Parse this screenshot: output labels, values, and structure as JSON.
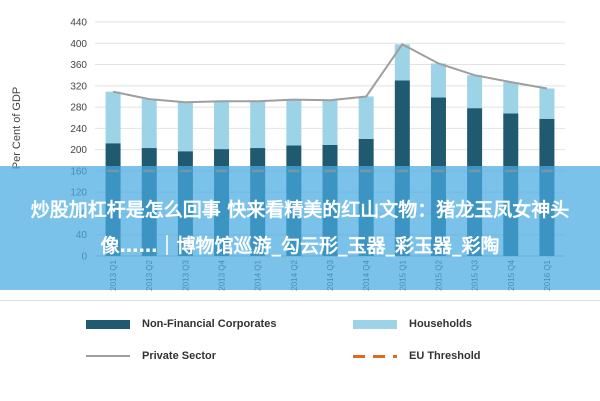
{
  "chart_data": {
    "type": "bar",
    "ylabel": "Per Cent of GDP",
    "ylim": [
      0,
      440
    ],
    "yticks": [
      0,
      40,
      80,
      120,
      160,
      200,
      240,
      280,
      320,
      360,
      400,
      440
    ],
    "categories": [
      "2013 Q1",
      "2013 Q2",
      "2013 Q3",
      "2013 Q4",
      "2014 Q1",
      "2014 Q2",
      "2014 Q3",
      "2014 Q4",
      "2015 Q1",
      "2015 Q2",
      "2015 Q3",
      "2015 Q4",
      "2016 Q1"
    ],
    "series": [
      {
        "name": "Non-Financial Corporates",
        "type": "bar",
        "color": "#1f5a70",
        "values": [
          212,
          203,
          197,
          201,
          203,
          208,
          209,
          220,
          330,
          298,
          278,
          268,
          258
        ]
      },
      {
        "name": "Households",
        "type": "bar",
        "color": "#9dd3e6",
        "values": [
          97,
          92,
          92,
          90,
          88,
          86,
          84,
          80,
          68,
          64,
          62,
          59,
          57
        ]
      },
      {
        "name": "Private Sector",
        "type": "line",
        "color": "#9e9e9e",
        "values": [
          309,
          295,
          289,
          291,
          291,
          294,
          293,
          300,
          398,
          362,
          340,
          327,
          315
        ]
      },
      {
        "name": "EU Threshold",
        "type": "dash",
        "color": "#e06a1e",
        "values": [
          160,
          160,
          160,
          160,
          160,
          160,
          160,
          160,
          160,
          160,
          160,
          160,
          160
        ]
      }
    ]
  },
  "overlay": {
    "text": "炒股加杠杆是怎么回事 快来看精美的红山文物：猪龙玉凤女神头像……｜博物馆巡游_勾云形_玉器_彩玉器_彩陶"
  },
  "legend": {
    "non_financial": {
      "label": "Non-Financial Corporates",
      "color": "#1f5a70"
    },
    "households": {
      "label": "Households",
      "color": "#9dd3e6"
    },
    "private_sector": {
      "label": "Private Sector",
      "color": "#9e9e9e"
    },
    "eu_threshold": {
      "label": "EU Threshold",
      "color": "#e06a1e"
    }
  }
}
